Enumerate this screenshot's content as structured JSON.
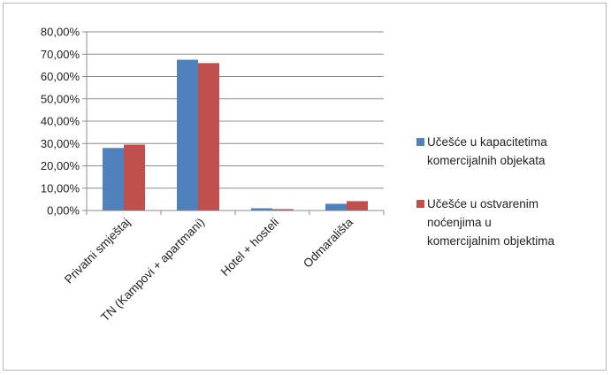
{
  "chart_data": {
    "type": "bar",
    "categories": [
      "Privatni smještaj",
      "TN  (Kampovi + apartmani)",
      "Hotel + hosteli",
      "Odmarališta"
    ],
    "series": [
      {
        "name": "Učešće u kapacitetima komercijalnih  objekata",
        "values": [
          28.0,
          67.5,
          1.0,
          3.0
        ],
        "color": "#4f81bd"
      },
      {
        "name": "Učešće u ostvarenim noćenjima u komercijalnim objektima",
        "values": [
          29.5,
          66.0,
          0.6,
          4.2
        ],
        "color": "#c0504d"
      }
    ],
    "y_ticks": [
      "0,00%",
      "10,00%",
      "20,00%",
      "30,00%",
      "40,00%",
      "50,00%",
      "60,00%",
      "70,00%",
      "80,00%"
    ],
    "ylim": [
      0,
      80
    ],
    "grid": true,
    "legend_position": "right",
    "legend_lines": [
      "Učešće u kapacitetima\nkomercijalnih  objekata",
      "Učešće u ostvarenim\nnoćenjima u\nkomercijalnim objektima"
    ]
  }
}
